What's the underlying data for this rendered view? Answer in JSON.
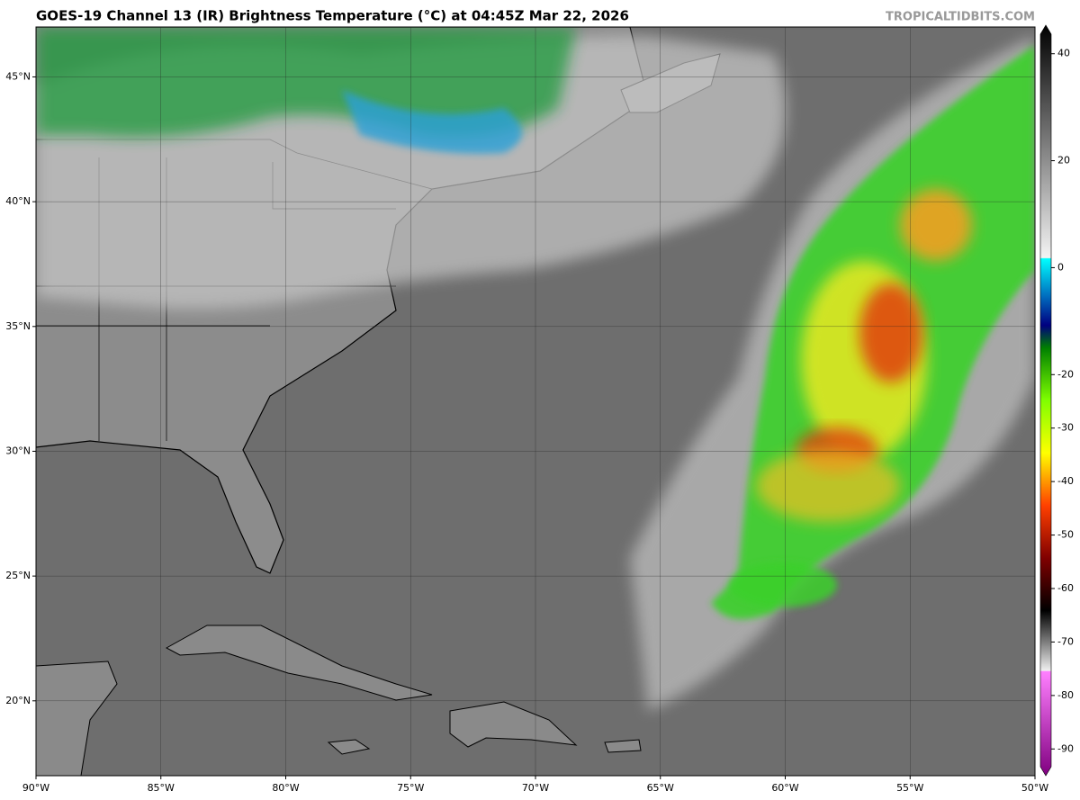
{
  "header": {
    "title": "GOES-19 Channel 13 (IR) Brightness Temperature (°C) at 04:45Z Mar 22, 2026",
    "watermark": "TROPICALTIDBITS.COM"
  },
  "map": {
    "lonlim": [
      -90,
      -50
    ],
    "latlim": [
      17,
      47
    ],
    "lonticks": [
      {
        "value": -90,
        "label": "90°W"
      },
      {
        "value": -85,
        "label": "85°W"
      },
      {
        "value": -80,
        "label": "80°W"
      },
      {
        "value": -75,
        "label": "75°W"
      },
      {
        "value": -70,
        "label": "70°W"
      },
      {
        "value": -65,
        "label": "65°W"
      },
      {
        "value": -60,
        "label": "60°W"
      },
      {
        "value": -55,
        "label": "55°W"
      },
      {
        "value": -50,
        "label": "50°W"
      }
    ],
    "latticks": [
      {
        "value": 20,
        "label": "20°N"
      },
      {
        "value": 25,
        "label": "25°N"
      },
      {
        "value": 30,
        "label": "30°N"
      },
      {
        "value": 35,
        "label": "35°N"
      },
      {
        "value": 40,
        "label": "40°N"
      },
      {
        "value": 45,
        "label": "45°N"
      }
    ]
  },
  "colorbar": {
    "lim": [
      -95,
      45
    ],
    "ticks": [
      40,
      20,
      0,
      -20,
      -30,
      -40,
      -50,
      -60,
      -70,
      -80,
      -90
    ]
  }
}
